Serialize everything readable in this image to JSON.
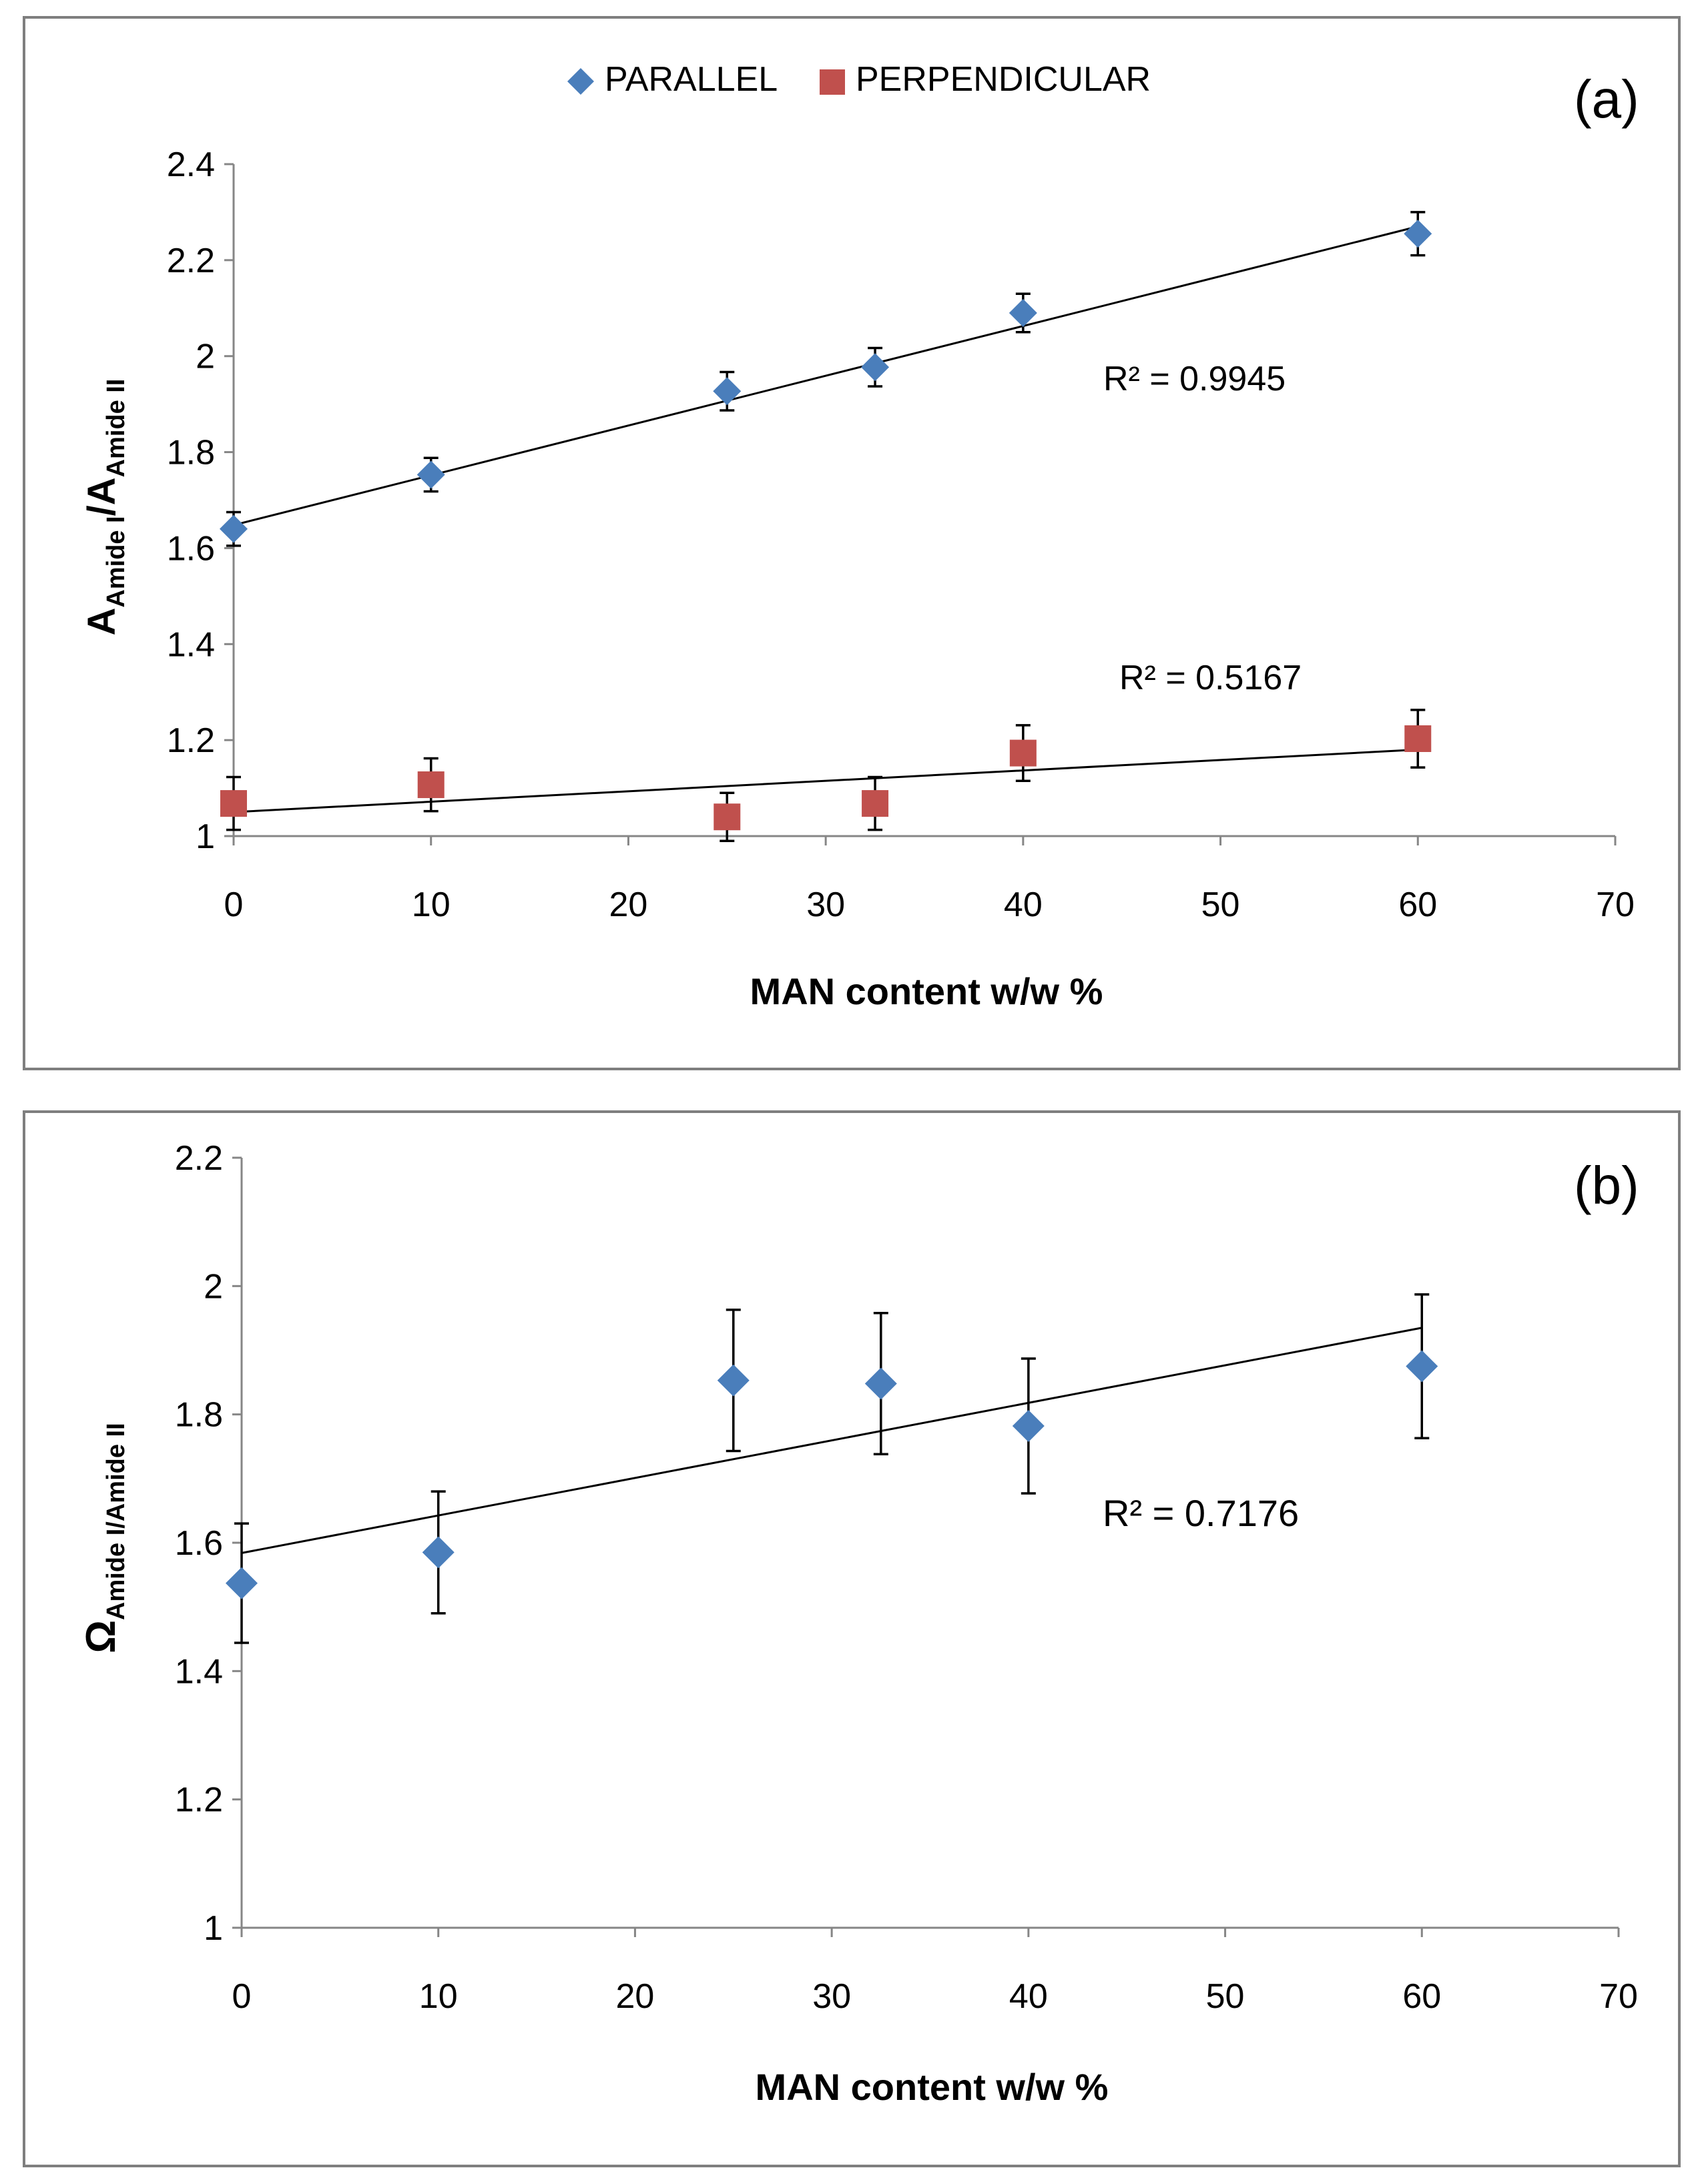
{
  "chart_data": [
    {
      "panel_label": "(a)",
      "type": "scatter",
      "xlabel": "MAN content w/w %",
      "ylabel": {
        "main": "A",
        "sub1": "Amide I",
        "sep": "/A",
        "sub2": "Amide II"
      },
      "xlim": [
        0,
        70
      ],
      "ylim": [
        1,
        2.4
      ],
      "xticks": [
        "0",
        "10",
        "20",
        "30",
        "40",
        "50",
        "60",
        "70"
      ],
      "yticks": [
        "1",
        "1.2",
        "1.4",
        "1.6",
        "1.8",
        "2",
        "2.2",
        "2.4"
      ],
      "grid": false,
      "legend_position": "top-center",
      "series": [
        {
          "name": "PARALLEL",
          "marker": "diamond",
          "color": "#4a7ebb",
          "x": [
            0,
            10,
            25,
            32.5,
            40,
            60
          ],
          "y": [
            1.64,
            1.753,
            1.927,
            1.977,
            2.09,
            2.255
          ],
          "err": [
            0.035,
            0.035,
            0.04,
            0.04,
            0.04,
            0.045
          ],
          "trendline": {
            "slope": 0.01037,
            "intercept": 1.648
          },
          "r2_label": "R² = 0.9945"
        },
        {
          "name": "PERPENDICULAR",
          "marker": "square",
          "color": "#c0504d",
          "x": [
            0,
            10,
            25,
            32.5,
            40,
            60
          ],
          "y": [
            1.068,
            1.107,
            1.04,
            1.068,
            1.173,
            1.203
          ],
          "err": [
            0.055,
            0.055,
            0.05,
            0.055,
            0.058,
            0.06
          ],
          "trendline": {
            "slope": 0.00217,
            "intercept": 1.05
          },
          "r2_label": "R² = 0.5167"
        }
      ]
    },
    {
      "panel_label": "(b)",
      "type": "scatter",
      "xlabel": "MAN content w/w %",
      "ylabel": {
        "main": "Ω",
        "sub1": "Amide I/Amide II",
        "sep": "",
        "sub2": ""
      },
      "xlim": [
        0,
        70
      ],
      "ylim": [
        1,
        2.2
      ],
      "xticks": [
        "0",
        "10",
        "20",
        "30",
        "40",
        "50",
        "60",
        "70"
      ],
      "yticks": [
        "1",
        "1.2",
        "1.4",
        "1.6",
        "1.8",
        "2",
        "2.2"
      ],
      "grid": false,
      "series": [
        {
          "name": "",
          "marker": "diamond",
          "color": "#4a7ebb",
          "x": [
            0,
            10,
            25,
            32.5,
            40,
            60
          ],
          "y": [
            1.537,
            1.585,
            1.853,
            1.848,
            1.782,
            1.875
          ],
          "err": [
            0.093,
            0.095,
            0.11,
            0.11,
            0.105,
            0.112
          ],
          "trendline": {
            "slope": 0.00585,
            "intercept": 1.584
          },
          "r2_label": "R² = 0.7176"
        }
      ]
    }
  ]
}
